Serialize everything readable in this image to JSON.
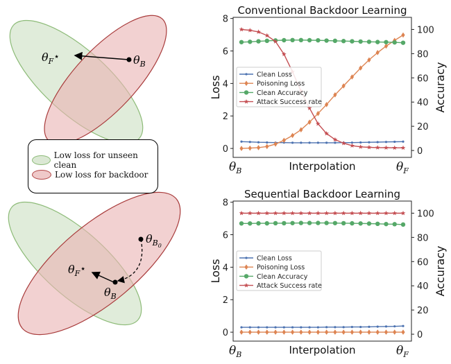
{
  "diagram": {
    "top": {
      "theta_f_label": "θ",
      "theta_f_sub": "F",
      "theta_f_star": "⋆",
      "theta_b_label": "θ",
      "theta_b_sub": "B"
    },
    "bottom": {
      "theta_f_label": "θ",
      "theta_f_sub": "F",
      "theta_f_star": "⋆",
      "theta_b_label": "θ",
      "theta_b_sub": "B",
      "theta_b0_label": "θ",
      "theta_b0_sub": "B",
      "theta_b0_subsub": "0"
    },
    "legend": [
      {
        "label": "Low loss for unseen clean",
        "fill": "#dbe8d4",
        "stroke": "#8dbb78"
      },
      {
        "label": "Low loss for backdoor",
        "fill": "#efc9c9",
        "stroke": "#b34848"
      }
    ],
    "colors": {
      "green_fill": "#d5e6cd",
      "green_stroke": "#8dbb78",
      "red_fill": "#e9b3b3",
      "red_stroke": "#a83b3b"
    }
  },
  "chart_data": [
    {
      "type": "line",
      "title": "Conventional Backdoor Learning",
      "xlabel": "Interpolation",
      "xtick_left": "θ",
      "xtick_left_sub": "B",
      "xtick_right": "θ",
      "xtick_right_sub": "F",
      "ylabel": "Loss",
      "ylabel_right": "Accuracy",
      "ylim": [
        -0.55,
        8.07
      ],
      "ylim_right": [
        -5.7,
        110
      ],
      "yticks": [
        0,
        2,
        4,
        6,
        8
      ],
      "yticks_right": [
        0,
        20,
        40,
        60,
        80,
        100
      ],
      "legend_position": "center-left",
      "series": [
        {
          "name": "Clean Loss",
          "axis": "left",
          "color": "#4c72b0",
          "marker": "dot",
          "values": [
            0.42,
            0.4,
            0.38,
            0.37,
            0.36,
            0.36,
            0.35,
            0.35,
            0.35,
            0.35,
            0.35,
            0.35,
            0.36,
            0.36,
            0.37,
            0.38,
            0.39,
            0.4,
            0.41,
            0.42
          ]
        },
        {
          "name": "Poisoning Loss",
          "axis": "left",
          "color": "#dd8452",
          "marker": "diamond",
          "values": [
            0.0,
            0.02,
            0.05,
            0.12,
            0.27,
            0.5,
            0.8,
            1.15,
            1.62,
            2.15,
            2.7,
            3.3,
            3.85,
            4.4,
            4.95,
            5.45,
            5.9,
            6.3,
            6.65,
            6.98
          ]
        },
        {
          "name": "Clean Accuracy",
          "axis": "right",
          "color": "#55a868",
          "marker": "circle",
          "values": [
            89.5,
            89.8,
            90.2,
            90.6,
            90.9,
            91.1,
            91.2,
            91.2,
            91.1,
            91.0,
            90.8,
            90.6,
            90.4,
            90.2,
            90.0,
            89.8,
            89.6,
            89.5,
            89.3,
            89.0
          ]
        },
        {
          "name": "Attack Success rate",
          "axis": "right",
          "color": "#c44e52",
          "marker": "star",
          "values": [
            100,
            99.3,
            98,
            95,
            90,
            79.5,
            65,
            49,
            35,
            22,
            14,
            9,
            6,
            4,
            3,
            2.6,
            2.4,
            2.3,
            2.2,
            2.2
          ]
        }
      ]
    },
    {
      "type": "line",
      "title": "Sequential Backdoor Learning",
      "xlabel": "Interpolation",
      "xtick_left": "θ",
      "xtick_left_sub": "B",
      "xtick_right": "θ",
      "xtick_right_sub": "F",
      "ylabel": "Loss",
      "ylabel_right": "Accuracy",
      "ylim": [
        -0.55,
        8.07
      ],
      "ylim_right": [
        -5.7,
        110
      ],
      "yticks": [
        0,
        2,
        4,
        6,
        8
      ],
      "yticks_right": [
        0,
        20,
        40,
        60,
        80,
        100
      ],
      "legend_position": "center-left",
      "series": [
        {
          "name": "Clean Loss",
          "axis": "left",
          "color": "#4c72b0",
          "marker": "dot",
          "values": [
            0.3,
            0.3,
            0.3,
            0.3,
            0.3,
            0.3,
            0.3,
            0.3,
            0.3,
            0.3,
            0.31,
            0.31,
            0.31,
            0.32,
            0.32,
            0.33,
            0.34,
            0.35,
            0.36,
            0.38
          ]
        },
        {
          "name": "Poisoning Loss",
          "axis": "left",
          "color": "#dd8452",
          "marker": "diamond",
          "values": [
            0,
            0,
            0,
            0,
            0,
            0,
            0,
            0,
            0,
            0,
            0,
            0,
            0,
            0,
            0,
            0,
            0,
            0,
            0,
            0
          ]
        },
        {
          "name": "Clean Accuracy",
          "axis": "right",
          "color": "#55a868",
          "marker": "circle",
          "values": [
            91.5,
            91.5,
            91.6,
            91.6,
            91.7,
            91.7,
            91.8,
            91.9,
            91.9,
            91.9,
            91.9,
            91.8,
            91.7,
            91.6,
            91.5,
            91.4,
            91.2,
            91.0,
            90.9,
            90.6
          ]
        },
        {
          "name": "Attack Success rate",
          "axis": "right",
          "color": "#c44e52",
          "marker": "star",
          "values": [
            100,
            100,
            100,
            100,
            100,
            100,
            100,
            100,
            100,
            100,
            100,
            100,
            100,
            100,
            100,
            100,
            100,
            100,
            100,
            100
          ]
        }
      ]
    }
  ]
}
